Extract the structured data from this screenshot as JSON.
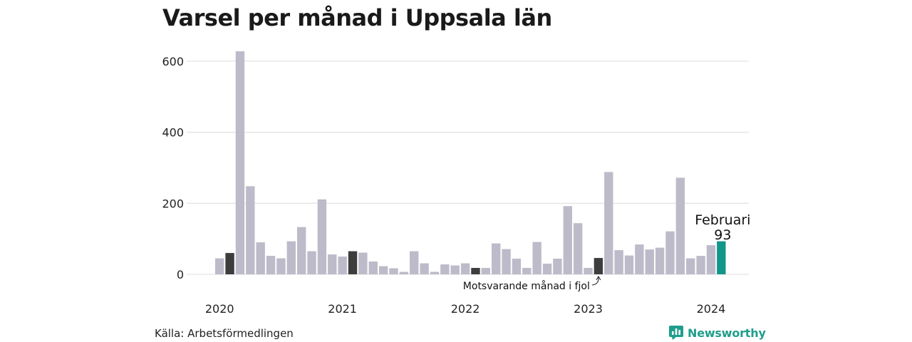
{
  "title": "Varsel per månad i Uppsala län",
  "source": "Källa: Arbetsförmedlingen",
  "brand": {
    "name": "Newsworthy",
    "icon": "newsworthy-logo-icon"
  },
  "colors": {
    "bar": "#bdbbc9",
    "same_month": "#3d3d3d",
    "current": "#12968a",
    "grid": "#dcdcdc",
    "brand": "#1f9e8c"
  },
  "chart_data": {
    "type": "bar",
    "title": "Varsel per månad i Uppsala län",
    "ylim": [
      0,
      630
    ],
    "yticks": [
      0,
      200,
      400,
      600
    ],
    "grid": true,
    "year_labels": [
      "2020",
      "2021",
      "2022",
      "2023",
      "2024"
    ],
    "months": [
      "2020-01",
      "2020-02",
      "2020-03",
      "2020-04",
      "2020-05",
      "2020-06",
      "2020-07",
      "2020-08",
      "2020-09",
      "2020-10",
      "2020-11",
      "2020-12",
      "2021-01",
      "2021-02",
      "2021-03",
      "2021-04",
      "2021-05",
      "2021-06",
      "2021-07",
      "2021-08",
      "2021-09",
      "2021-10",
      "2021-11",
      "2021-12",
      "2022-01",
      "2022-02",
      "2022-03",
      "2022-04",
      "2022-05",
      "2022-06",
      "2022-07",
      "2022-08",
      "2022-09",
      "2022-10",
      "2022-11",
      "2022-12",
      "2023-01",
      "2023-02",
      "2023-03",
      "2023-04",
      "2023-05",
      "2023-06",
      "2023-07",
      "2023-08",
      "2023-09",
      "2023-10",
      "2023-11",
      "2023-12",
      "2024-01",
      "2024-02"
    ],
    "values": [
      45,
      60,
      628,
      248,
      90,
      52,
      45,
      93,
      133,
      65,
      211,
      56,
      50,
      65,
      61,
      36,
      23,
      17,
      7,
      65,
      31,
      7,
      28,
      25,
      31,
      18,
      18,
      87,
      71,
      44,
      18,
      91,
      30,
      44,
      192,
      144,
      18,
      46,
      288,
      68,
      53,
      84,
      70,
      75,
      121,
      272,
      45,
      52,
      82,
      93
    ],
    "same_month_indices": [
      1,
      13,
      25,
      37
    ],
    "current_index": 49,
    "annotations": {
      "current_month_label": "Februari",
      "current_value_label": "93",
      "same_month_note": "Motsvarande månad i fjol"
    }
  }
}
